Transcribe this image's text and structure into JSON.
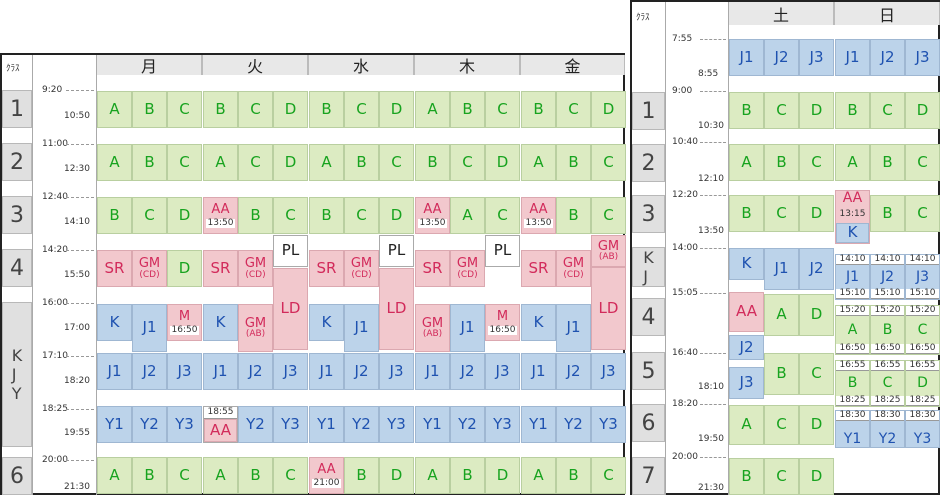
{
  "left": {
    "header": {
      "class_label": "ｸﾗｽ",
      "days": [
        "月",
        "火",
        "水",
        "木",
        "金"
      ]
    },
    "class_labels": [
      "1",
      "2",
      "3",
      "4",
      "KJY",
      "6"
    ],
    "time_labels": [
      "9:20",
      "10:50",
      "11:00",
      "12:30",
      "12:40",
      "14:10",
      "14:20",
      "15:50",
      "16:00",
      "17:00",
      "17:10",
      "18:20",
      "18:25",
      "19:55",
      "20:00",
      "21:30"
    ],
    "rows": {
      "r1": [
        [
          "A",
          "g"
        ],
        [
          "B",
          "g"
        ],
        [
          "C",
          "g"
        ],
        [
          "B",
          "g"
        ],
        [
          "C",
          "g"
        ],
        [
          "D",
          "g"
        ],
        [
          "B",
          "g"
        ],
        [
          "C",
          "g"
        ],
        [
          "D",
          "g"
        ],
        [
          "A",
          "g"
        ],
        [
          "B",
          "g"
        ],
        [
          "C",
          "g"
        ],
        [
          "B",
          "g"
        ],
        [
          "C",
          "g"
        ],
        [
          "D",
          "g"
        ]
      ],
      "r2": [
        [
          "A",
          "g"
        ],
        [
          "B",
          "g"
        ],
        [
          "C",
          "g"
        ],
        [
          "A",
          "g"
        ],
        [
          "C",
          "g"
        ],
        [
          "D",
          "g"
        ],
        [
          "A",
          "g"
        ],
        [
          "B",
          "g"
        ],
        [
          "C",
          "g"
        ],
        [
          "B",
          "g"
        ],
        [
          "C",
          "g"
        ],
        [
          "D",
          "g"
        ],
        [
          "A",
          "g"
        ],
        [
          "B",
          "g"
        ],
        [
          "C",
          "g"
        ]
      ],
      "r3": [
        [
          "B",
          "g"
        ],
        [
          "C",
          "g"
        ],
        [
          "D",
          "g"
        ],
        [
          "AA",
          "p",
          "13:50"
        ],
        [
          "B",
          "g"
        ],
        [
          "C",
          "g"
        ],
        [
          "B",
          "g"
        ],
        [
          "C",
          "g"
        ],
        [
          "D",
          "g"
        ],
        [
          "AA",
          "p",
          "13:50"
        ],
        [
          "A",
          "g"
        ],
        [
          "C",
          "g"
        ],
        [
          "AA",
          "p",
          "13:50"
        ],
        [
          "B",
          "g"
        ],
        [
          "C",
          "g"
        ]
      ],
      "r4": [
        [
          "SR",
          "p"
        ],
        [
          "GM",
          "p",
          "(CD)"
        ],
        [
          "D",
          "g"
        ],
        [
          "SR",
          "p"
        ],
        [
          "GM",
          "p",
          "(CD)"
        ],
        [
          "SR",
          "p"
        ],
        [
          "GM",
          "p",
          "(CD)"
        ],
        [
          "SR",
          "p"
        ],
        [
          "GM",
          "p",
          "(CD)"
        ],
        [
          "SR",
          "p"
        ],
        [
          "GM",
          "p",
          "(CD)"
        ]
      ],
      "pl": [
        "PL",
        "PL",
        "PL"
      ],
      "gm_ab": [
        "GM",
        "(AB)"
      ],
      "ld": [
        "LD",
        "LD",
        "LD"
      ],
      "kj": [
        [
          "K",
          "b"
        ],
        [
          "J1",
          "b"
        ],
        [
          "M",
          "p",
          "16:50"
        ],
        [
          "K",
          "b"
        ],
        [
          "GM",
          "p",
          "(AB)"
        ],
        [
          "K",
          "b"
        ],
        [
          "J1",
          "b"
        ],
        [
          "GM",
          "p",
          "(AB)"
        ],
        [
          "J1",
          "b"
        ],
        [
          "M",
          "p",
          "16:50"
        ],
        [
          "K",
          "b"
        ],
        [
          "J1",
          "b"
        ]
      ],
      "j": [
        [
          "J1",
          "b"
        ],
        [
          "J2",
          "b"
        ],
        [
          "J3",
          "b"
        ],
        [
          "J1",
          "b"
        ],
        [
          "J2",
          "b"
        ],
        [
          "J3",
          "b"
        ],
        [
          "J1",
          "b"
        ],
        [
          "J2",
          "b"
        ],
        [
          "J3",
          "b"
        ],
        [
          "J1",
          "b"
        ],
        [
          "J2",
          "b"
        ],
        [
          "J3",
          "b"
        ],
        [
          "J1",
          "b"
        ],
        [
          "J2",
          "b"
        ],
        [
          "J3",
          "b"
        ]
      ],
      "y": [
        [
          "Y1",
          "b"
        ],
        [
          "Y2",
          "b"
        ],
        [
          "Y3",
          "b"
        ],
        [
          "Y2",
          "b"
        ],
        [
          "Y3",
          "b"
        ],
        [
          "Y1",
          "b"
        ],
        [
          "Y2",
          "b"
        ],
        [
          "Y3",
          "b"
        ],
        [
          "Y1",
          "b"
        ],
        [
          "Y2",
          "b"
        ],
        [
          "Y3",
          "b"
        ],
        [
          "Y1",
          "b"
        ],
        [
          "Y2",
          "b"
        ],
        [
          "Y3",
          "b"
        ]
      ],
      "tue_y": {
        "time": "18:55",
        "label": "AA"
      },
      "r6": [
        [
          "A",
          "g"
        ],
        [
          "B",
          "g"
        ],
        [
          "C",
          "g"
        ],
        [
          "A",
          "g"
        ],
        [
          "B",
          "g"
        ],
        [
          "C",
          "g"
        ],
        [
          "AA",
          "p",
          "21:00"
        ],
        [
          "B",
          "g"
        ],
        [
          "D",
          "g"
        ],
        [
          "A",
          "g"
        ],
        [
          "B",
          "g"
        ],
        [
          "D",
          "g"
        ],
        [
          "A",
          "g"
        ],
        [
          "B",
          "g"
        ],
        [
          "C",
          "g"
        ]
      ]
    }
  },
  "right": {
    "header": {
      "class_label": "ｸﾗｽ",
      "days": [
        "土",
        "日"
      ]
    },
    "class_labels": [
      "1",
      "2",
      "3",
      "KJ",
      "4",
      "5",
      "6",
      "7"
    ],
    "time_labels": [
      "7:55",
      "8:55",
      "9:00",
      "10:30",
      "10:40",
      "12:10",
      "12:20",
      "13:50",
      "14:00",
      "15:05",
      "16:40",
      "18:10",
      "18:20",
      "19:50",
      "20:00",
      "21:30"
    ],
    "r0": [
      [
        "J1",
        "b"
      ],
      [
        "J2",
        "b"
      ],
      [
        "J3",
        "b"
      ],
      [
        "J1",
        "b"
      ],
      [
        "J2",
        "b"
      ],
      [
        "J3",
        "b"
      ]
    ],
    "r1": [
      [
        "B",
        "g"
      ],
      [
        "C",
        "g"
      ],
      [
        "D",
        "g"
      ],
      [
        "B",
        "g"
      ],
      [
        "C",
        "g"
      ],
      [
        "D",
        "g"
      ]
    ],
    "r2": [
      [
        "A",
        "g"
      ],
      [
        "B",
        "g"
      ],
      [
        "C",
        "g"
      ],
      [
        "A",
        "g"
      ],
      [
        "B",
        "g"
      ],
      [
        "C",
        "g"
      ]
    ],
    "r3": [
      [
        "B",
        "g"
      ],
      [
        "C",
        "g"
      ],
      [
        "D",
        "g"
      ],
      [
        "B",
        "g"
      ],
      [
        "C",
        "g"
      ]
    ],
    "sun_aa": {
      "label": "AA",
      "time": "13:15",
      "k": "K"
    },
    "kj": [
      [
        "K",
        "b"
      ],
      [
        "J1",
        "b"
      ],
      [
        "J2",
        "b"
      ]
    ],
    "sun_kj": [
      [
        "14:10",
        "J1",
        "15:10"
      ],
      [
        "14:10",
        "J2",
        "15:10"
      ],
      [
        "14:10",
        "J3",
        "15:10"
      ]
    ],
    "sat_left": [
      [
        "AA",
        "p"
      ],
      [
        "J2",
        "b"
      ],
      [
        "J3",
        "b"
      ]
    ],
    "sat_r4": [
      [
        "A",
        "g"
      ],
      [
        "D",
        "g"
      ]
    ],
    "sat_r5": [
      [
        "B",
        "g"
      ],
      [
        "C",
        "g"
      ]
    ],
    "sun_r4": [
      [
        "15:20",
        "A",
        "16:50"
      ],
      [
        "15:20",
        "B",
        "16:50"
      ],
      [
        "15:20",
        "C",
        "16:50"
      ]
    ],
    "sun_r5": [
      [
        "16:55",
        "B",
        "18:25"
      ],
      [
        "16:55",
        "C",
        "18:25"
      ],
      [
        "16:55",
        "D",
        "18:25"
      ]
    ],
    "sun_r6": [
      [
        "18:30",
        "Y1"
      ],
      [
        "18:30",
        "Y2"
      ],
      [
        "18:30",
        "Y3"
      ]
    ],
    "r6": [
      [
        "A",
        "g"
      ],
      [
        "C",
        "g"
      ],
      [
        "D",
        "g"
      ]
    ],
    "r7": [
      [
        "B",
        "g"
      ],
      [
        "C",
        "g"
      ],
      [
        "D",
        "g"
      ]
    ]
  }
}
